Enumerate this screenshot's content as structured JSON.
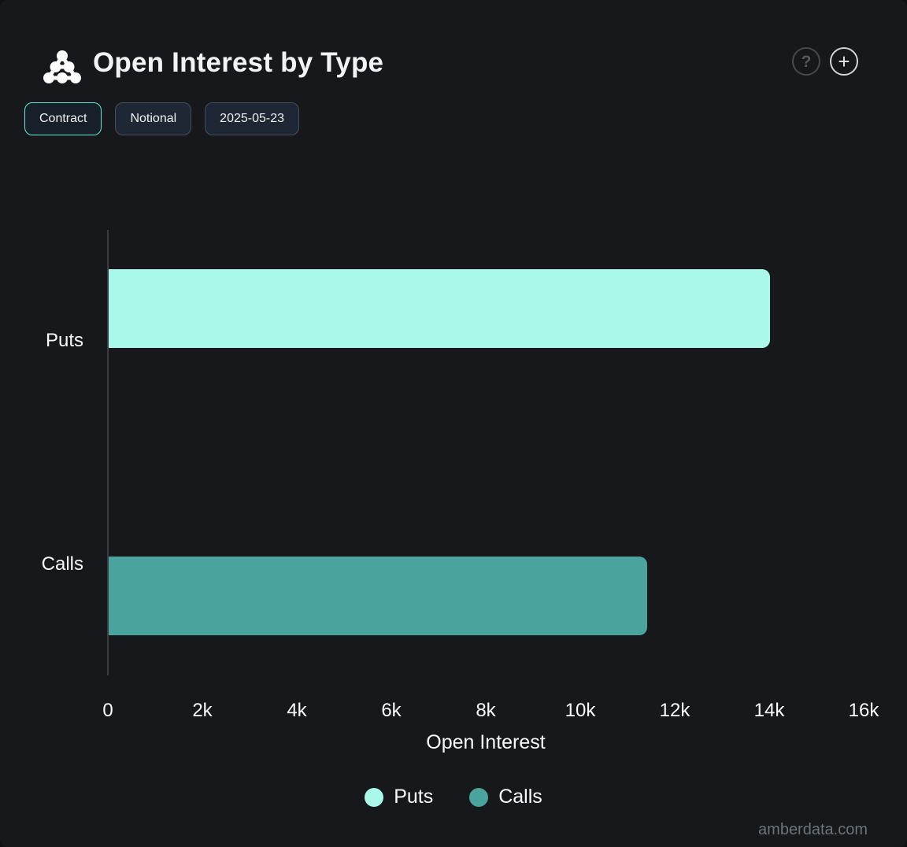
{
  "header": {
    "title": "Open Interest by Type",
    "help_icon": "?",
    "add_icon": "+"
  },
  "toolbar": {
    "buttons": [
      {
        "label": "Contract",
        "active": true
      },
      {
        "label": "Notional",
        "active": false
      },
      {
        "label": "2025-05-23",
        "active": false
      }
    ]
  },
  "chart_data": {
    "type": "bar",
    "orientation": "horizontal",
    "title": "Open Interest by Type",
    "categories": [
      "Puts",
      "Calls"
    ],
    "series": [
      {
        "name": "Puts",
        "color": "#a9f8e9",
        "values": [
          14000,
          null
        ]
      },
      {
        "name": "Calls",
        "color": "#4aa39d",
        "values": [
          null,
          11400
        ]
      }
    ],
    "xlabel": "Open Interest",
    "ylabel": "",
    "xlim": [
      0,
      16000
    ],
    "x_ticks": [
      "0",
      "2k",
      "4k",
      "6k",
      "8k",
      "10k",
      "12k",
      "14k",
      "16k"
    ],
    "grid": false,
    "legend": [
      {
        "label": "Puts",
        "color": "#a9f8e9"
      },
      {
        "label": "Calls",
        "color": "#4aa39d"
      }
    ],
    "legend_position": "bottom"
  },
  "colors": {
    "background": "#16181c",
    "axis_line": "#393d43",
    "text": "#fbfcfd",
    "active_pill_border": "#62e9d2",
    "watermark": "#6e737a"
  },
  "watermark": "amberdata.com"
}
